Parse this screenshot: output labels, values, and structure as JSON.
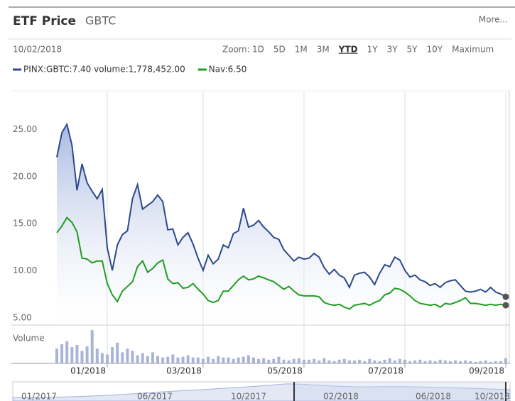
{
  "header": {
    "title": "ETF Price",
    "symbol": "GBTC",
    "more": "More..."
  },
  "date": "10/02/2018",
  "zoom": {
    "label": "Zoom:",
    "options": [
      "1D",
      "5D",
      "1M",
      "3M",
      "YTD",
      "1Y",
      "3Y",
      "5Y",
      "10Y",
      "Maximum"
    ],
    "selected": 4
  },
  "chart_data": {
    "type": "line",
    "xlim": [
      0,
      89
    ],
    "xticks": [
      {
        "value": 10,
        "label": "01/2018"
      },
      {
        "value": 29,
        "label": "03/2018"
      },
      {
        "value": 49,
        "label": "05/2018"
      },
      {
        "value": 69,
        "label": "07/2018"
      },
      {
        "value": 89,
        "label": "09/2018"
      }
    ],
    "ylim": [
      4.4,
      29.1
    ],
    "yticks": [
      {
        "value": 5,
        "label": "5.00"
      },
      {
        "value": 10,
        "label": "10.00"
      },
      {
        "value": 15,
        "label": "15.00"
      },
      {
        "value": 20,
        "label": "20.00"
      },
      {
        "value": 25,
        "label": "25.00"
      }
    ],
    "grid": true,
    "series": [
      {
        "name": "PINX:GBTC:7.40 volume:1,778,452.00",
        "color": "#2b4a8b",
        "area": true,
        "values": [
          22.2,
          24.8,
          25.7,
          23.5,
          18.7,
          21.5,
          19.5,
          18.6,
          17.8,
          18.8,
          12.6,
          10.2,
          12.9,
          14.0,
          14.4,
          17.8,
          19.3,
          16.7,
          17.1,
          17.5,
          18.2,
          17.5,
          14.5,
          14.6,
          12.9,
          13.7,
          14.2,
          13.0,
          11.5,
          10.2,
          11.8,
          10.9,
          11.4,
          12.9,
          12.6,
          14.1,
          14.4,
          16.8,
          14.8,
          15.0,
          15.5,
          14.8,
          14.3,
          13.7,
          13.5,
          12.4,
          11.8,
          11.2,
          11.6,
          11.4,
          11.5,
          12.0,
          11.6,
          10.5,
          9.8,
          10.3,
          9.7,
          9.4,
          8.4,
          9.7,
          9.9,
          10.0,
          9.5,
          8.7,
          9.9,
          10.8,
          10.6,
          11.6,
          11.3,
          10.2,
          9.5,
          9.7,
          9.2,
          9.0,
          8.6,
          8.8,
          8.4,
          8.9,
          9.1,
          9.2,
          8.6,
          8.0,
          7.9,
          8.0,
          8.2,
          7.9,
          8.4,
          7.9,
          7.7,
          7.4
        ]
      },
      {
        "name": "Nav:6.50",
        "color": "#1f9e1f",
        "area": false,
        "values": [
          14.2,
          14.9,
          15.8,
          15.3,
          14.3,
          11.5,
          11.4,
          11.0,
          11.2,
          11.2,
          8.8,
          7.6,
          6.9,
          8.0,
          8.5,
          9.0,
          10.6,
          11.2,
          10.0,
          10.4,
          11.0,
          11.3,
          9.3,
          8.8,
          8.9,
          8.3,
          8.4,
          8.8,
          8.2,
          7.7,
          7.0,
          6.8,
          7.0,
          8.0,
          8.0,
          8.6,
          9.2,
          9.6,
          9.2,
          9.3,
          9.6,
          9.4,
          9.2,
          9.0,
          8.6,
          8.2,
          8.5,
          8.0,
          7.6,
          7.5,
          7.5,
          7.5,
          7.4,
          6.8,
          6.6,
          6.5,
          6.6,
          6.3,
          6.1,
          6.5,
          6.6,
          6.7,
          6.5,
          6.8,
          7.0,
          7.6,
          7.8,
          8.3,
          8.2,
          7.9,
          7.5,
          7.0,
          6.7,
          6.6,
          6.5,
          6.6,
          6.3,
          6.7,
          6.6,
          6.8,
          7.0,
          7.3,
          6.7,
          6.7,
          6.6,
          6.5,
          6.6,
          6.5,
          6.6,
          6.5
        ]
      }
    ],
    "volume": {
      "label": "Volume",
      "color": "#a9b5d6",
      "ylim": [
        0,
        12000000
      ],
      "values": [
        5000000,
        6500000,
        7500000,
        5500000,
        6250000,
        4250000,
        5750000,
        11250000,
        5000000,
        3500000,
        3000000,
        5500000,
        7000000,
        3750000,
        5000000,
        4250000,
        2750000,
        3500000,
        2500000,
        3750000,
        2500000,
        2000000,
        2250000,
        3000000,
        2000000,
        2250000,
        2750000,
        2000000,
        2000000,
        1500000,
        2250000,
        1500000,
        2500000,
        2000000,
        2000000,
        1500000,
        2000000,
        2250000,
        2750000,
        2000000,
        1500000,
        1750000,
        1250000,
        1500000,
        2250000,
        1250000,
        1000000,
        1500000,
        1750000,
        1250000,
        1250000,
        1500000,
        1000000,
        1750000,
        1000000,
        750000,
        1250000,
        1500000,
        1000000,
        1000000,
        1250000,
        750000,
        1500000,
        1000000,
        750000,
        1250000,
        1750000,
        1000000,
        1500000,
        1250000,
        750000,
        1000000,
        1250000,
        750000,
        1000000,
        750000,
        1250000,
        1000000,
        750000,
        1000000,
        750000,
        1000000,
        750000,
        500000,
        750000,
        1000000,
        500000,
        750000,
        750000,
        1778452
      ]
    }
  },
  "navigator": {
    "labels": [
      "01/2017",
      "06/2017",
      "10/2017",
      "02/2018",
      "06/2018",
      "10/2018"
    ]
  }
}
